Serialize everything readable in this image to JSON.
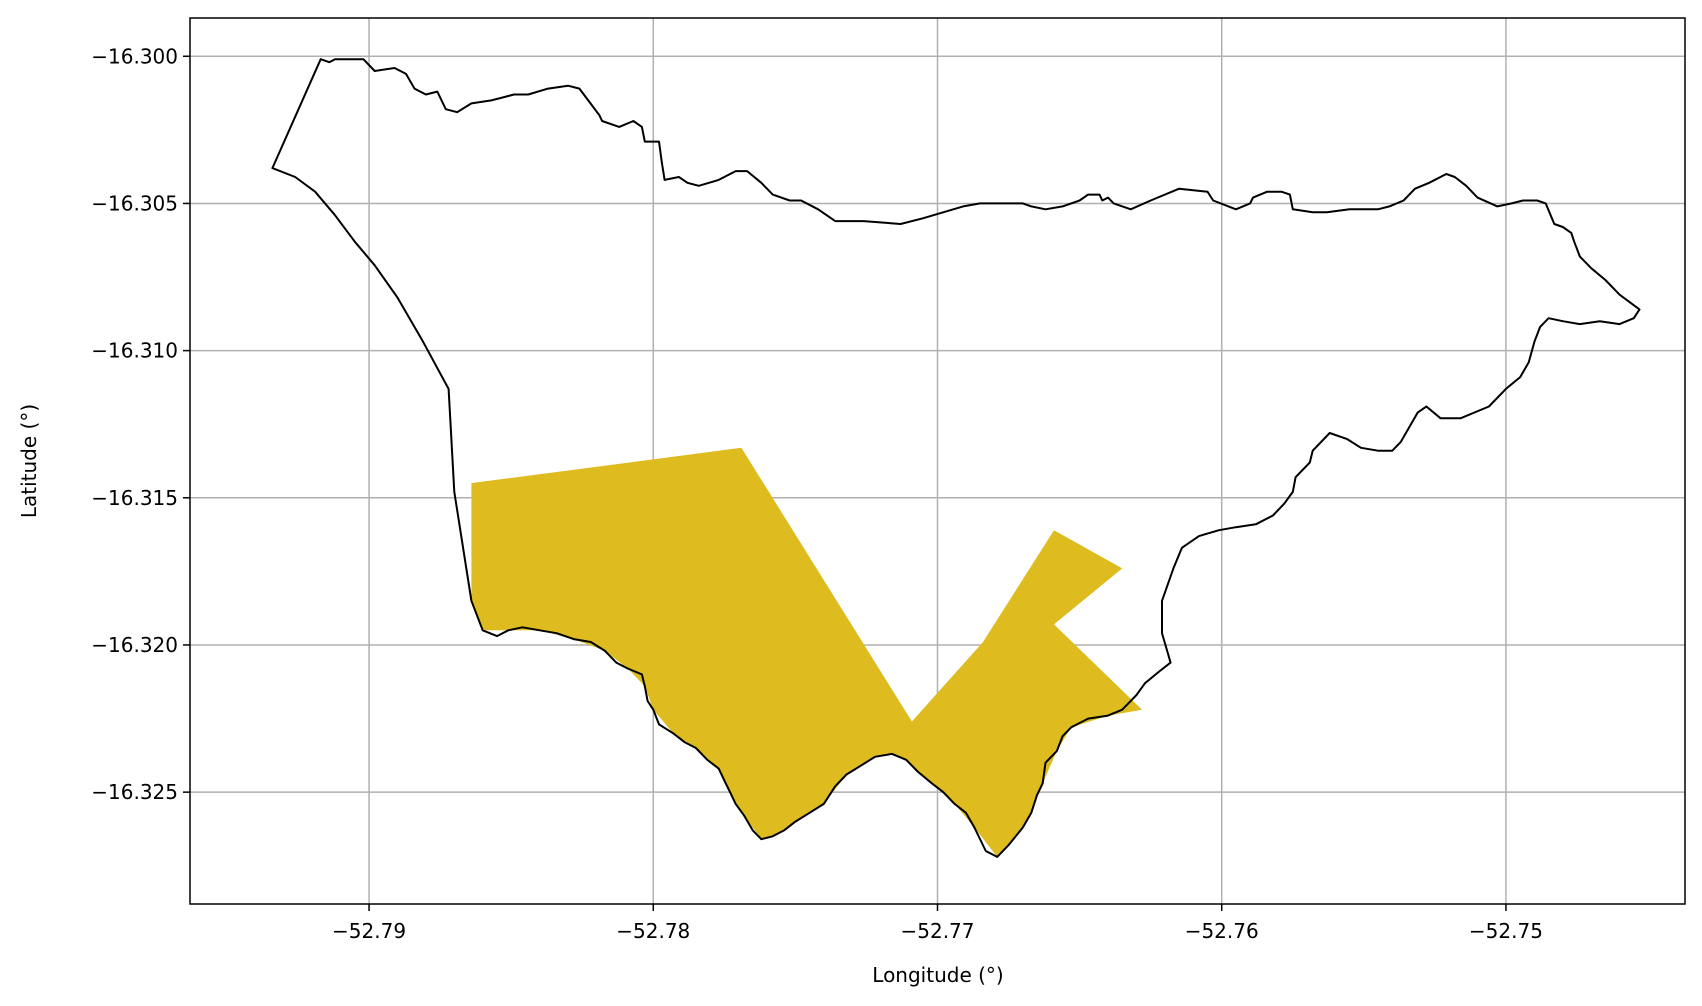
{
  "chart_data": {
    "type": "map",
    "xlabel": "Longitude (°)",
    "ylabel": "Latitude (°)",
    "xlim": [
      -52.7963,
      -52.7437
    ],
    "ylim": [
      -16.3288,
      -16.2987
    ],
    "xticks": [
      {
        "value": -52.79,
        "label": "−52.79"
      },
      {
        "value": -52.78,
        "label": "−52.78"
      },
      {
        "value": -52.77,
        "label": "−52.77"
      },
      {
        "value": -52.76,
        "label": "−52.76"
      },
      {
        "value": -52.75,
        "label": "−52.75"
      }
    ],
    "yticks": [
      {
        "value": -16.3,
        "label": "−16.300"
      },
      {
        "value": -16.305,
        "label": "−16.305"
      },
      {
        "value": -16.31,
        "label": "−16.310"
      },
      {
        "value": -16.315,
        "label": "−16.315"
      },
      {
        "value": -16.32,
        "label": "−16.320"
      },
      {
        "value": -16.325,
        "label": "−16.325"
      }
    ],
    "grid": true,
    "colors": {
      "boundary": "#000000",
      "highlight": "#DEBB1E",
      "grid": "#b0b0b0"
    },
    "boundary": [
      [
        -52.7934,
        -16.3038
      ],
      [
        -52.7917,
        -16.3001
      ],
      [
        -52.7914,
        -16.3002
      ],
      [
        -52.7912,
        -16.3001
      ],
      [
        -52.7902,
        -16.3001
      ],
      [
        -52.7898,
        -16.3005
      ],
      [
        -52.7891,
        -16.3004
      ],
      [
        -52.7887,
        -16.3006
      ],
      [
        -52.7884,
        -16.3011
      ],
      [
        -52.788,
        -16.3013
      ],
      [
        -52.7876,
        -16.3012
      ],
      [
        -52.7873,
        -16.3018
      ],
      [
        -52.7869,
        -16.3019
      ],
      [
        -52.7864,
        -16.3016
      ],
      [
        -52.7857,
        -16.3015
      ],
      [
        -52.7853,
        -16.3014
      ],
      [
        -52.7849,
        -16.3013
      ],
      [
        -52.7844,
        -16.3013
      ],
      [
        -52.7837,
        -16.3011
      ],
      [
        -52.783,
        -16.301
      ],
      [
        -52.7826,
        -16.3011
      ],
      [
        -52.7819,
        -16.302
      ],
      [
        -52.7818,
        -16.3022
      ],
      [
        -52.7812,
        -16.3024
      ],
      [
        -52.7807,
        -16.3022
      ],
      [
        -52.7804,
        -16.3024
      ],
      [
        -52.7803,
        -16.3029
      ],
      [
        -52.7798,
        -16.3029
      ],
      [
        -52.7797,
        -16.3036
      ],
      [
        -52.7796,
        -16.3042
      ],
      [
        -52.7791,
        -16.3041
      ],
      [
        -52.7788,
        -16.3043
      ],
      [
        -52.7784,
        -16.3044
      ],
      [
        -52.7777,
        -16.3042
      ],
      [
        -52.7771,
        -16.3039
      ],
      [
        -52.7767,
        -16.3039
      ],
      [
        -52.7762,
        -16.3043
      ],
      [
        -52.7758,
        -16.3047
      ],
      [
        -52.7752,
        -16.3049
      ],
      [
        -52.7748,
        -16.3049
      ],
      [
        -52.7742,
        -16.3052
      ],
      [
        -52.7736,
        -16.3056
      ],
      [
        -52.7726,
        -16.3056
      ],
      [
        -52.7713,
        -16.3057
      ],
      [
        -52.7705,
        -16.3055
      ],
      [
        -52.7698,
        -16.3053
      ],
      [
        -52.7691,
        -16.3051
      ],
      [
        -52.7685,
        -16.305
      ],
      [
        -52.7677,
        -16.305
      ],
      [
        -52.767,
        -16.305
      ],
      [
        -52.7667,
        -16.3051
      ],
      [
        -52.7662,
        -16.3052
      ],
      [
        -52.7656,
        -16.3051
      ],
      [
        -52.765,
        -16.3049
      ],
      [
        -52.7647,
        -16.3047
      ],
      [
        -52.7643,
        -16.3047
      ],
      [
        -52.7642,
        -16.3049
      ],
      [
        -52.764,
        -16.3048
      ],
      [
        -52.7638,
        -16.305
      ],
      [
        -52.7632,
        -16.3052
      ],
      [
        -52.7625,
        -16.3049
      ],
      [
        -52.7615,
        -16.3045
      ],
      [
        -52.7605,
        -16.3046
      ],
      [
        -52.7603,
        -16.3049
      ],
      [
        -52.7595,
        -16.3052
      ],
      [
        -52.759,
        -16.305
      ],
      [
        -52.7589,
        -16.3048
      ],
      [
        -52.7584,
        -16.3046
      ],
      [
        -52.7579,
        -16.3046
      ],
      [
        -52.7576,
        -16.3047
      ],
      [
        -52.7575,
        -16.3052
      ],
      [
        -52.7568,
        -16.3053
      ],
      [
        -52.7563,
        -16.3053
      ],
      [
        -52.7555,
        -16.3052
      ],
      [
        -52.7548,
        -16.3052
      ],
      [
        -52.7545,
        -16.3052
      ],
      [
        -52.7541,
        -16.3051
      ],
      [
        -52.7536,
        -16.3049
      ],
      [
        -52.7532,
        -16.3045
      ],
      [
        -52.7527,
        -16.3043
      ],
      [
        -52.7521,
        -16.304
      ],
      [
        -52.7518,
        -16.3041
      ],
      [
        -52.7514,
        -16.3044
      ],
      [
        -52.751,
        -16.3048
      ],
      [
        -52.7503,
        -16.3051
      ],
      [
        -52.7498,
        -16.305
      ],
      [
        -52.7494,
        -16.3049
      ],
      [
        -52.7489,
        -16.3049
      ],
      [
        -52.7486,
        -16.305
      ],
      [
        -52.7483,
        -16.3057
      ],
      [
        -52.748,
        -16.3058
      ],
      [
        -52.7477,
        -16.306
      ],
      [
        -52.7476,
        -16.3063
      ],
      [
        -52.7474,
        -16.3068
      ],
      [
        -52.747,
        -16.3072
      ],
      [
        -52.7465,
        -16.3076
      ],
      [
        -52.746,
        -16.3081
      ],
      [
        -52.7453,
        -16.3086
      ],
      [
        -52.7455,
        -16.3089
      ],
      [
        -52.746,
        -16.3091
      ],
      [
        -52.7467,
        -16.309
      ],
      [
        -52.7474,
        -16.3091
      ],
      [
        -52.748,
        -16.309
      ],
      [
        -52.7485,
        -16.3089
      ],
      [
        -52.7488,
        -16.3092
      ],
      [
        -52.749,
        -16.3097
      ],
      [
        -52.7492,
        -16.3104
      ],
      [
        -52.7495,
        -16.3109
      ],
      [
        -52.75,
        -16.3113
      ],
      [
        -52.7506,
        -16.3119
      ],
      [
        -52.7516,
        -16.3123
      ],
      [
        -52.7523,
        -16.3123
      ],
      [
        -52.7528,
        -16.3119
      ],
      [
        -52.7531,
        -16.3121
      ],
      [
        -52.7537,
        -16.3131
      ],
      [
        -52.754,
        -16.3134
      ],
      [
        -52.7545,
        -16.3134
      ],
      [
        -52.7551,
        -16.3133
      ],
      [
        -52.7556,
        -16.313
      ],
      [
        -52.7562,
        -16.3128
      ],
      [
        -52.7568,
        -16.3134
      ],
      [
        -52.7569,
        -16.3138
      ],
      [
        -52.7574,
        -16.3143
      ],
      [
        -52.7575,
        -16.3148
      ],
      [
        -52.7578,
        -16.3152
      ],
      [
        -52.7582,
        -16.3156
      ],
      [
        -52.7588,
        -16.3159
      ],
      [
        -52.7595,
        -16.316
      ],
      [
        -52.7601,
        -16.3161
      ],
      [
        -52.7608,
        -16.3163
      ],
      [
        -52.7614,
        -16.3167
      ],
      [
        -52.7617,
        -16.3174
      ],
      [
        -52.7621,
        -16.3185
      ],
      [
        -52.7621,
        -16.3196
      ],
      [
        -52.7618,
        -16.3206
      ],
      [
        -52.7622,
        -16.3209
      ],
      [
        -52.7627,
        -16.3213
      ],
      [
        -52.763,
        -16.3217
      ],
      [
        -52.7635,
        -16.3222
      ],
      [
        -52.764,
        -16.3224
      ],
      [
        -52.7647,
        -16.3225
      ],
      [
        -52.7653,
        -16.3228
      ],
      [
        -52.7656,
        -16.3231
      ],
      [
        -52.7658,
        -16.3236
      ],
      [
        -52.766,
        -16.3238
      ],
      [
        -52.7662,
        -16.324
      ],
      [
        -52.7663,
        -16.3247
      ],
      [
        -52.7665,
        -16.3251
      ],
      [
        -52.7667,
        -16.3257
      ],
      [
        -52.767,
        -16.3262
      ],
      [
        -52.7675,
        -16.3268
      ],
      [
        -52.7679,
        -16.3272
      ],
      [
        -52.7683,
        -16.327
      ],
      [
        -52.7687,
        -16.3262
      ],
      [
        -52.769,
        -16.3257
      ],
      [
        -52.7694,
        -16.3254
      ],
      [
        -52.7698,
        -16.325
      ],
      [
        -52.7702,
        -16.3247
      ],
      [
        -52.7707,
        -16.3243
      ],
      [
        -52.7711,
        -16.3239
      ],
      [
        -52.7716,
        -16.3237
      ],
      [
        -52.7722,
        -16.3238
      ],
      [
        -52.7727,
        -16.3241
      ],
      [
        -52.7732,
        -16.3244
      ],
      [
        -52.7736,
        -16.3248
      ],
      [
        -52.774,
        -16.3254
      ],
      [
        -52.7745,
        -16.3257
      ],
      [
        -52.775,
        -16.326
      ],
      [
        -52.7754,
        -16.3263
      ],
      [
        -52.7758,
        -16.3265
      ],
      [
        -52.7762,
        -16.3266
      ],
      [
        -52.7765,
        -16.3263
      ],
      [
        -52.7768,
        -16.3258
      ],
      [
        -52.7771,
        -16.3254
      ],
      [
        -52.7773,
        -16.325
      ],
      [
        -52.7775,
        -16.3246
      ],
      [
        -52.7777,
        -16.3242
      ],
      [
        -52.7781,
        -16.3239
      ],
      [
        -52.7785,
        -16.3235
      ],
      [
        -52.7789,
        -16.3233
      ],
      [
        -52.7793,
        -16.323
      ],
      [
        -52.7798,
        -16.3227
      ],
      [
        -52.78,
        -16.3222
      ],
      [
        -52.7802,
        -16.3219
      ],
      [
        -52.7803,
        -16.3214
      ],
      [
        -52.7804,
        -16.321
      ],
      [
        -52.7809,
        -16.3208
      ],
      [
        -52.7813,
        -16.3206
      ],
      [
        -52.7817,
        -16.3202
      ],
      [
        -52.7822,
        -16.3199
      ],
      [
        -52.7828,
        -16.3198
      ],
      [
        -52.7834,
        -16.3196
      ],
      [
        -52.784,
        -16.3195
      ],
      [
        -52.7846,
        -16.3194
      ],
      [
        -52.7851,
        -16.3195
      ],
      [
        -52.7855,
        -16.3197
      ],
      [
        -52.786,
        -16.3195
      ],
      [
        -52.7864,
        -16.3185
      ],
      [
        -52.787,
        -16.3148
      ],
      [
        -52.7872,
        -16.3113
      ],
      [
        -52.7881,
        -16.3097
      ],
      [
        -52.789,
        -16.3082
      ],
      [
        -52.7898,
        -16.3071
      ],
      [
        -52.7905,
        -16.3063
      ],
      [
        -52.7912,
        -16.3054
      ],
      [
        -52.7919,
        -16.3046
      ],
      [
        -52.7926,
        -16.3041
      ],
      [
        -52.7934,
        -16.3038
      ]
    ],
    "highlight": [
      [
        -52.7864,
        -16.3145
      ],
      [
        -52.7769,
        -16.3133
      ],
      [
        -52.7709,
        -16.3226
      ],
      [
        -52.7684,
        -16.3199
      ],
      [
        -52.7659,
        -16.3161
      ],
      [
        -52.7635,
        -16.3174
      ],
      [
        -52.7659,
        -16.3193
      ],
      [
        -52.7628,
        -16.3222
      ],
      [
        -52.764,
        -16.3224
      ],
      [
        -52.7653,
        -16.3228
      ],
      [
        -52.7658,
        -16.3236
      ],
      [
        -52.7663,
        -16.3247
      ],
      [
        -52.7667,
        -16.3257
      ],
      [
        -52.767,
        -16.3262
      ],
      [
        -52.7675,
        -16.3268
      ],
      [
        -52.7679,
        -16.3272
      ],
      [
        -52.7687,
        -16.3262
      ],
      [
        -52.7694,
        -16.3254
      ],
      [
        -52.7702,
        -16.3247
      ],
      [
        -52.7711,
        -16.3239
      ],
      [
        -52.7716,
        -16.3237
      ],
      [
        -52.7722,
        -16.3238
      ],
      [
        -52.7732,
        -16.3244
      ],
      [
        -52.774,
        -16.3254
      ],
      [
        -52.775,
        -16.326
      ],
      [
        -52.7758,
        -16.3265
      ],
      [
        -52.7762,
        -16.3266
      ],
      [
        -52.7768,
        -16.3258
      ],
      [
        -52.7773,
        -16.325
      ],
      [
        -52.7777,
        -16.3242
      ],
      [
        -52.7785,
        -16.3235
      ],
      [
        -52.7793,
        -16.323
      ],
      [
        -52.78,
        -16.3222
      ],
      [
        -52.7803,
        -16.3214
      ],
      [
        -52.7809,
        -16.3208
      ],
      [
        -52.7817,
        -16.3202
      ],
      [
        -52.7828,
        -16.3198
      ],
      [
        -52.784,
        -16.3195
      ],
      [
        -52.7851,
        -16.3195
      ],
      [
        -52.786,
        -16.3195
      ],
      [
        -52.7864,
        -16.3185
      ],
      [
        -52.7864,
        -16.3145
      ]
    ]
  }
}
